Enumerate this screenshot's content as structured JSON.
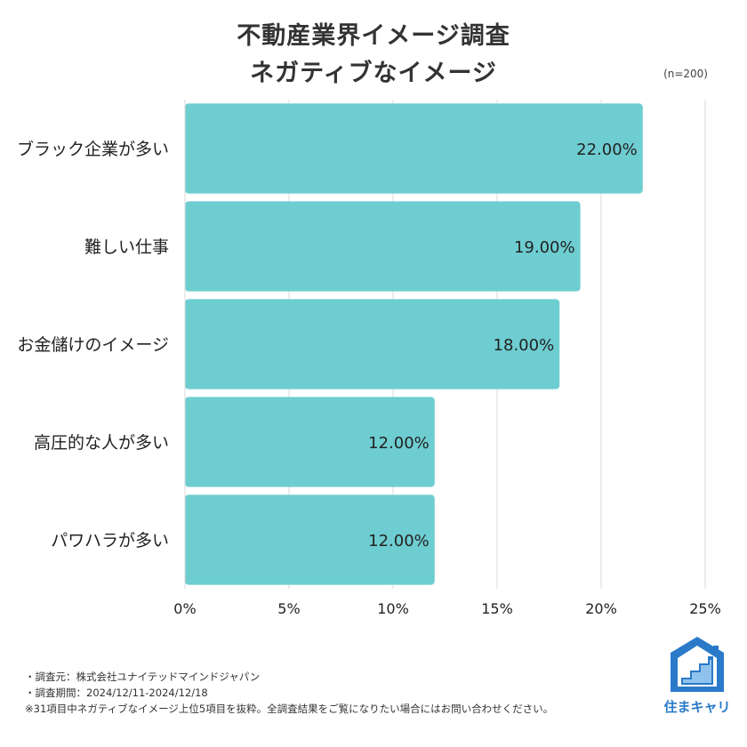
{
  "title": {
    "line1": "不動産業界イメージ調査",
    "line2": "ネガティブなイメージ"
  },
  "sample_note": "(n=200)",
  "chart_data": {
    "type": "bar",
    "orientation": "horizontal",
    "categories": [
      "ブラック企業が多い",
      "難しい仕事",
      "お金儲けのイメージ",
      "高圧的な人が多い",
      "パワハラが多い"
    ],
    "values": [
      22.0,
      19.0,
      18.0,
      12.0,
      12.0
    ],
    "value_labels": [
      "22.00%",
      "19.00%",
      "18.00%",
      "12.00%",
      "12.00%"
    ],
    "xlim": [
      0,
      25
    ],
    "x_ticks": [
      0,
      5,
      10,
      15,
      20,
      25
    ],
    "x_tick_labels": [
      "0%",
      "5%",
      "10%",
      "15%",
      "20%",
      "25%"
    ],
    "grid": true,
    "bar_color": "#6ECDD1",
    "grid_color": "#D9D9D9"
  },
  "footnotes": [
    "・調査元：株式会社ユナイテッドマインドジャパン",
    "・調査期間：2024/12/11-2024/12/18",
    "※31項目中ネガティブなイメージ上位5項目を抜粋。全調査結果をご覧になりたい場合にはお問い合わせください。"
  ],
  "logo": {
    "text": "住まキャリ",
    "icon": "stairs-house-icon",
    "color": "#2A7AC9"
  }
}
